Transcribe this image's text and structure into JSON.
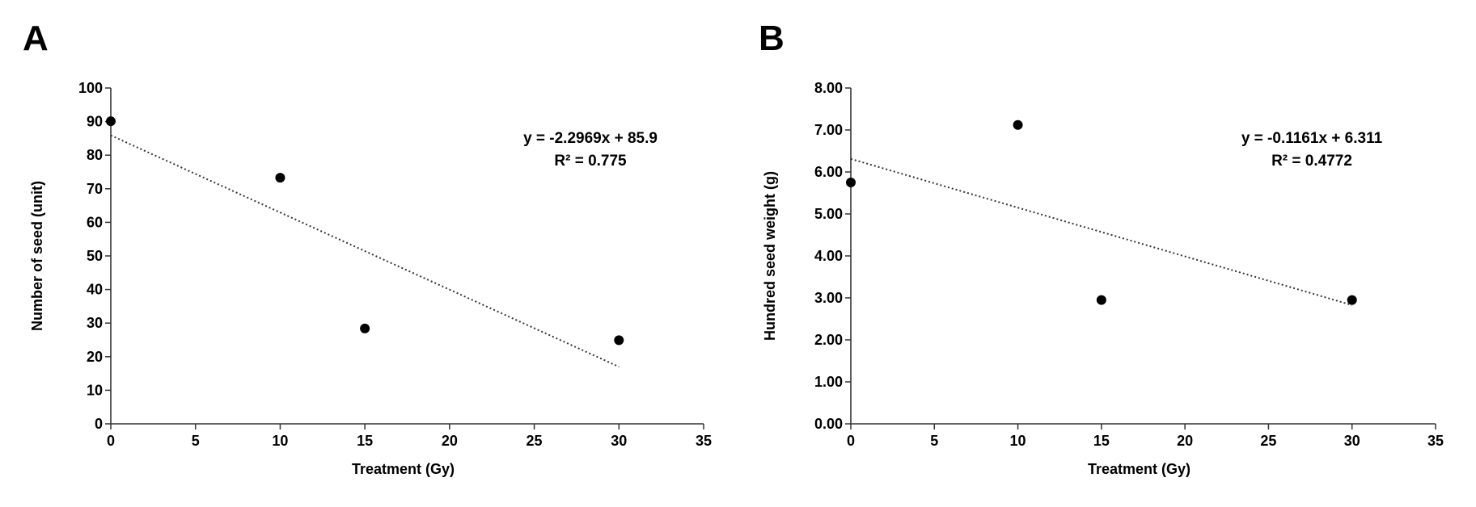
{
  "chart_data": [
    {
      "type": "scatter",
      "panel_label": "A",
      "title": "",
      "xlabel": "Treatment (Gy)",
      "ylabel": "Number of seed (unit)",
      "xlim": [
        0,
        35
      ],
      "ylim": [
        0,
        100
      ],
      "x_ticks": [
        0,
        5,
        10,
        15,
        20,
        25,
        30,
        35
      ],
      "y_ticks": [
        0,
        10,
        20,
        30,
        40,
        50,
        60,
        70,
        80,
        90,
        100
      ],
      "y_tick_decimals": 0,
      "series": [
        {
          "name": "Number of seed",
          "x": [
            0,
            10,
            15,
            30
          ],
          "y": [
            90.1,
            73.3,
            28.4,
            24.9
          ]
        }
      ],
      "trendline": {
        "style": "dotted",
        "slope": -2.2969,
        "intercept": 85.9,
        "x_range": [
          0,
          30
        ],
        "equation": "y = -2.2969x + 85.9",
        "r_squared": "R² = 0.775"
      },
      "grid": false,
      "legend": "none"
    },
    {
      "type": "scatter",
      "panel_label": "B",
      "title": "",
      "xlabel": "Treatment (Gy)",
      "ylabel": "Hundred seed weight (g)",
      "xlim": [
        0,
        35
      ],
      "ylim": [
        0,
        8
      ],
      "x_ticks": [
        0,
        5,
        10,
        15,
        20,
        25,
        30,
        35
      ],
      "y_ticks": [
        0,
        1,
        2,
        3,
        4,
        5,
        6,
        7,
        8
      ],
      "y_tick_decimals": 2,
      "series": [
        {
          "name": "Hundred seed weight",
          "x": [
            0,
            10,
            15,
            30
          ],
          "y": [
            5.75,
            7.12,
            2.95,
            2.95
          ]
        }
      ],
      "trendline": {
        "style": "dotted",
        "slope": -0.1161,
        "intercept": 6.311,
        "x_range": [
          0,
          30
        ],
        "equation": "y = -0.1161x + 6.311",
        "r_squared": "R² = 0.4772"
      },
      "grid": false,
      "legend": "none"
    }
  ]
}
